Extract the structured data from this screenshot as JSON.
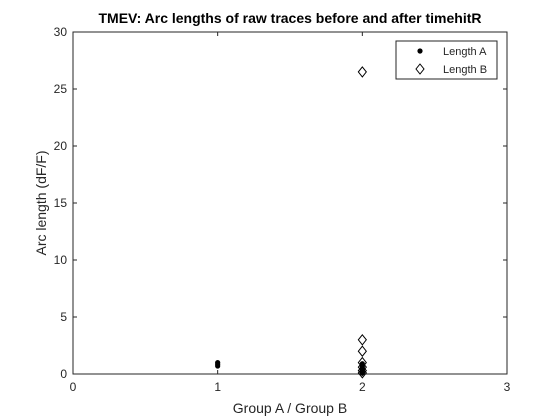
{
  "chart_data": {
    "type": "scatter",
    "title": "TMEV: Arc lengths of raw traces before and after timehitR",
    "xlabel": "Group A / Group B",
    "ylabel": "Arc length (dF/F)",
    "xlim": [
      0,
      3
    ],
    "ylim": [
      0,
      30
    ],
    "xticks": [
      0,
      1,
      2,
      3
    ],
    "yticks": [
      0,
      5,
      10,
      15,
      20,
      25,
      30
    ],
    "grid": false,
    "legend_location": "top-right",
    "series": [
      {
        "name": "Length A",
        "marker": "filled-dot",
        "color": "#000000",
        "points": [
          {
            "x": 1,
            "y": 0.7
          },
          {
            "x": 1,
            "y": 0.85
          },
          {
            "x": 1,
            "y": 1.0
          },
          {
            "x": 2,
            "y": 0.1
          },
          {
            "x": 2,
            "y": 0.25
          },
          {
            "x": 2,
            "y": 0.4
          },
          {
            "x": 2,
            "y": 0.55
          },
          {
            "x": 2,
            "y": 0.7
          },
          {
            "x": 2,
            "y": 0.9
          }
        ]
      },
      {
        "name": "Length B",
        "marker": "open-diamond",
        "color": "#000000",
        "points": [
          {
            "x": 2,
            "y": 26.5
          },
          {
            "x": 2,
            "y": 3.0
          },
          {
            "x": 2,
            "y": 2.0
          },
          {
            "x": 2,
            "y": 1.0
          },
          {
            "x": 2,
            "y": 0.6
          },
          {
            "x": 2,
            "y": 0.3
          },
          {
            "x": 2,
            "y": 0.1
          }
        ]
      }
    ]
  }
}
